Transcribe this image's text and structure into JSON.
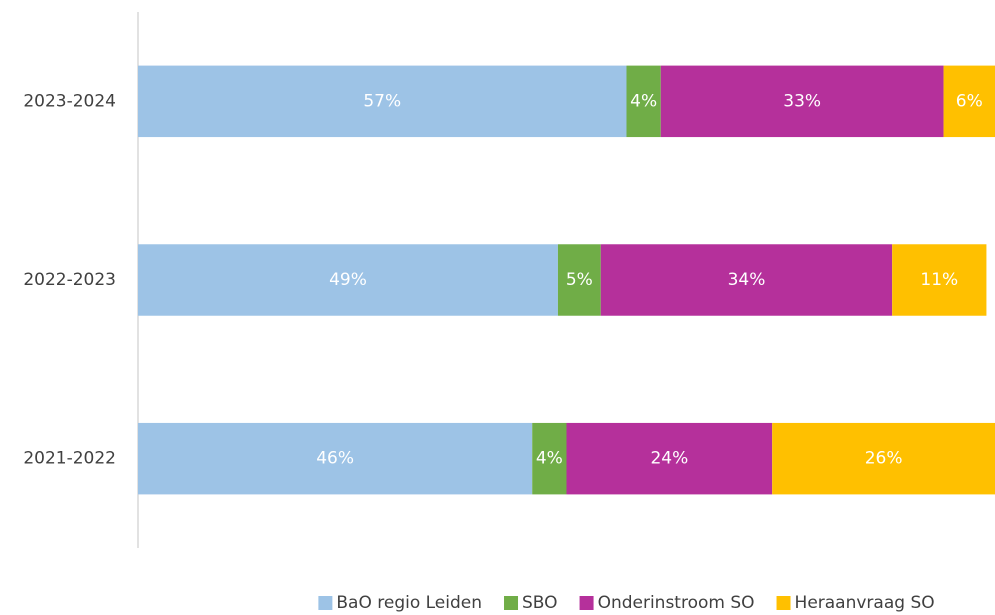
{
  "chart_data": {
    "type": "stacked_barh",
    "categories": [
      "2023-2024",
      "2022-2023",
      "2021-2022"
    ],
    "series": [
      {
        "name": "BaO regio Leiden",
        "color": "#9dc3e6",
        "values": [
          57,
          49,
          46
        ],
        "value_labels": [
          "57%",
          "49%",
          "46%"
        ]
      },
      {
        "name": "SBO",
        "color": "#70ad47",
        "values": [
          4,
          5,
          4
        ],
        "value_labels": [
          "4%",
          "5%",
          "4%"
        ]
      },
      {
        "name": "Onderinstroom SO",
        "color": "#b5309b",
        "values": [
          33,
          34,
          24
        ],
        "value_labels": [
          "33%",
          "34%",
          "24%"
        ]
      },
      {
        "name": "Heraanvraag SO",
        "color": "#ffc000",
        "values": [
          6,
          11,
          26
        ],
        "value_labels": [
          "6%",
          "11%",
          "26%"
        ]
      }
    ],
    "xlim": [
      0,
      100
    ],
    "legend": "bottom"
  }
}
